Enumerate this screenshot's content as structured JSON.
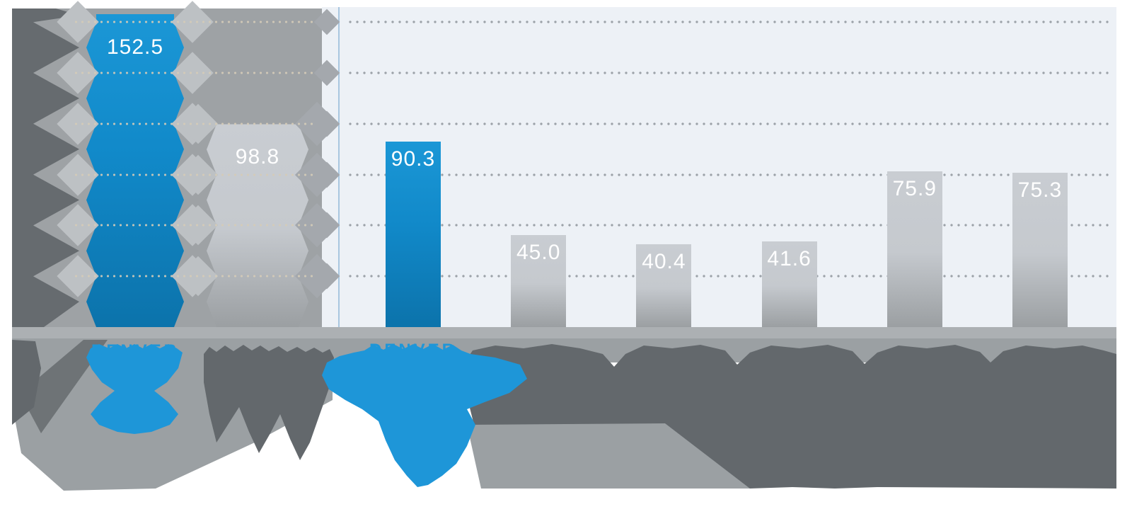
{
  "figure": {
    "description": "Bar chart infographic with heavy liquify-style distortion on the left panel and bottom label area",
    "note": "X-axis category labels below the chart are melted and illegible except the word DENVER under the two highlighted blue bars"
  },
  "chart_data": {
    "type": "bar",
    "title": "",
    "xlabel": "",
    "ylabel": "",
    "ylim": [
      0,
      160
    ],
    "gridlines": {
      "style": "dotted",
      "count": 6,
      "estimated_step": 25
    },
    "panels": [
      {
        "id": "left",
        "background": "#9EA2A5",
        "bars": [
          {
            "label": "DENVER",
            "label_legible": true,
            "value": 152.5,
            "value_label": "152.5",
            "highlighted": true
          },
          {
            "label": "",
            "label_legible": false,
            "value": 98.8,
            "value_label": "98.8",
            "highlighted": false
          }
        ]
      },
      {
        "id": "right",
        "background": "#EDF1F6",
        "bars": [
          {
            "label": "DENVER",
            "label_legible": true,
            "value": 90.3,
            "value_label": "90.3",
            "highlighted": true
          },
          {
            "label": "",
            "label_legible": false,
            "value": 45.0,
            "value_label": "45.0",
            "highlighted": false
          },
          {
            "label": "",
            "label_legible": false,
            "value": 40.4,
            "value_label": "40.4",
            "highlighted": false
          },
          {
            "label": "",
            "label_legible": false,
            "value": 41.6,
            "value_label": "41.6",
            "highlighted": false
          },
          {
            "label": "",
            "label_legible": false,
            "value": 75.9,
            "value_label": "75.9",
            "highlighted": false
          },
          {
            "label": "",
            "label_legible": false,
            "value": 75.3,
            "value_label": "75.3",
            "highlighted": false
          }
        ]
      }
    ],
    "colors": {
      "highlight_bar_top": "#1B97D6",
      "highlight_bar_bottom": "#0C73AB",
      "gray_bar_top": "#C9CDD2",
      "gray_bar_bottom": "#9B9FA2",
      "label_blue": "#1E96D8",
      "melted_text_gray": "#63686C",
      "label_band_gray": "#9BA0A3",
      "axis_band_gray": "#ACB0B3",
      "grid_dot_right": "#9CA2A8",
      "grid_dot_left": "#D4CBB8",
      "panel_left_bg": "#9EA2A5",
      "panel_right_bg": "#EDF1F6",
      "value_text": "#FFFFFF"
    }
  }
}
